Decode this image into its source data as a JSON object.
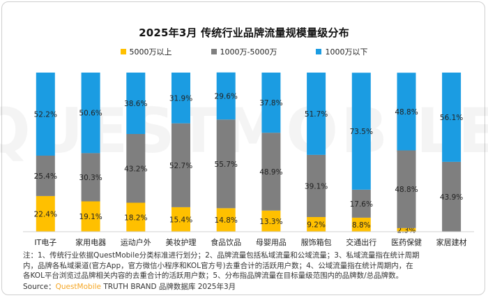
{
  "watermark": "QUESTMOBILE",
  "chart_data": {
    "type": "bar",
    "stacked": true,
    "percent": true,
    "title": "2025年3月 传统行业品牌流量规模量级分布",
    "categories": [
      "IT电子",
      "家用电器",
      "运动户外",
      "美妆护理",
      "食品饮品",
      "母婴用品",
      "服饰箱包",
      "交通出行",
      "医药保健",
      "家居建材"
    ],
    "series": [
      {
        "name": "5000万以上",
        "color": "#ffc000",
        "values": [
          22.4,
          19.1,
          18.2,
          15.4,
          14.8,
          13.3,
          9.2,
          8.8,
          2.3,
          0
        ],
        "labels": [
          "22.4%",
          "19.1%",
          "18.2%",
          "15.4%",
          "14.8%",
          "13.3%",
          "9.2%",
          "8.8%",
          "2.3%",
          ""
        ]
      },
      {
        "name": "1000万-5000万",
        "color": "#7f7f7f",
        "values": [
          25.4,
          30.3,
          43.2,
          52.7,
          55.7,
          48.9,
          39.1,
          17.6,
          48.8,
          43.9
        ],
        "labels": [
          "25.4%",
          "30.3%",
          "43.2%",
          "52.7%",
          "55.7%",
          "48.9%",
          "39.1%",
          "17.6%",
          "48.8%",
          "43.9%"
        ]
      },
      {
        "name": "1000万以下",
        "color": "#1b9ce2",
        "values": [
          52.2,
          50.6,
          38.6,
          31.9,
          29.6,
          37.8,
          51.7,
          73.5,
          48.8,
          56.1
        ],
        "labels": [
          "52.2%",
          "50.6%",
          "38.6%",
          "31.9%",
          "29.6%",
          "37.8%",
          "51.7%",
          "73.5%",
          "48.8%",
          "56.1%"
        ]
      }
    ],
    "ylim": [
      0,
      100
    ],
    "legend_position": "top",
    "grid": false
  },
  "notes": {
    "lines": [
      "注：1、传统行业依据QuestMobile分类标准进行划分；2、品牌流量包括私域流量和公域流量；3、私域流量指在统计周期",
      "内，品牌各私域渠道(官方App，官方微信小程序和KOL官方号)去重合计的活跃用户数；4、公域流量指在统计周期内，在",
      "各KOL平台浏览过品牌相关内容的去重合计的活跃用户数；5、分布指品牌流量在目标量级范围内的品牌数/总品牌数。"
    ]
  },
  "source": {
    "prefix": "Source：",
    "brand": "QuestMobile",
    "suffix": " TRUTH BRAND 品牌数据库 2025年3月"
  }
}
